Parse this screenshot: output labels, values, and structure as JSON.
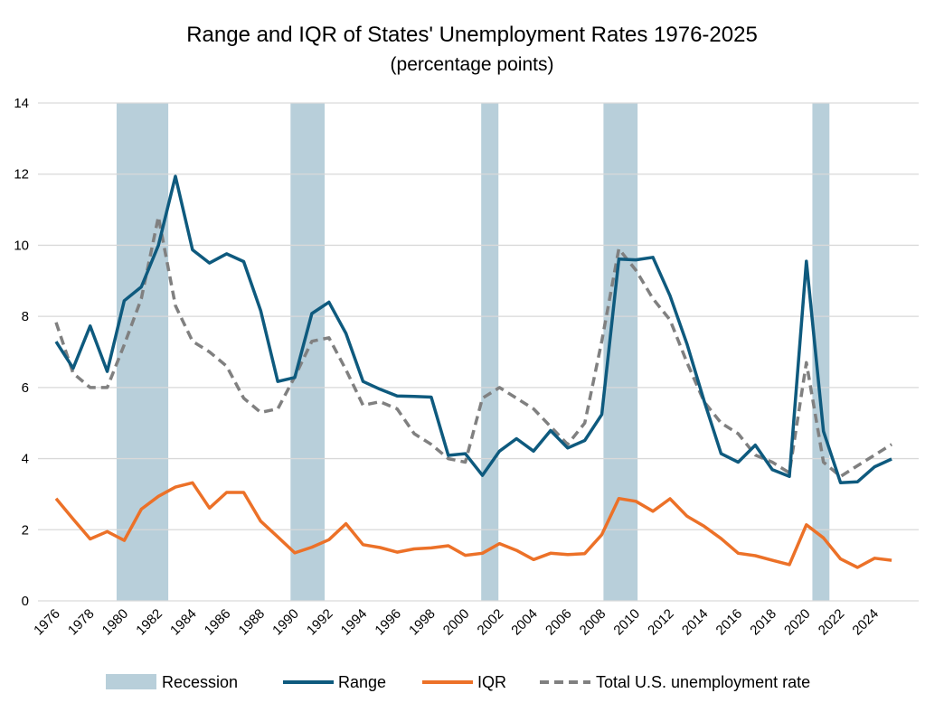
{
  "chart_data": {
    "type": "line",
    "title": "Range and IQR of States' Unemployment Rates 1976-2025",
    "subtitle": "(percentage points)",
    "xlabel": "",
    "ylabel": "",
    "xlim": [
      1976,
      2025
    ],
    "ylim": [
      0,
      14
    ],
    "yticks": [
      0,
      2,
      4,
      6,
      8,
      10,
      12,
      14
    ],
    "xticks": [
      1976,
      1978,
      1980,
      1982,
      1984,
      1986,
      1988,
      1990,
      1992,
      1994,
      1996,
      1998,
      2000,
      2002,
      2004,
      2006,
      2008,
      2010,
      2012,
      2014,
      2016,
      2018,
      2020,
      2022,
      2024
    ],
    "grid": "horizontal",
    "legend_placement": "bottom",
    "x": [
      1976,
      1977,
      1978,
      1979,
      1980,
      1981,
      1982,
      1983,
      1984,
      1985,
      1986,
      1987,
      1988,
      1989,
      1990,
      1991,
      1992,
      1993,
      1994,
      1995,
      1996,
      1997,
      1998,
      1999,
      2000,
      2001,
      2002,
      2003,
      2004,
      2005,
      2006,
      2007,
      2008,
      2009,
      2010,
      2011,
      2012,
      2013,
      2014,
      2015,
      2016,
      2017,
      2018,
      2019,
      2020,
      2021,
      2022,
      2023,
      2024,
      2025
    ],
    "recessions": {
      "name": "Recession",
      "color": "#b8cfda",
      "periods": [
        [
          1979.55,
          1982.58
        ],
        [
          1989.75,
          1991.75
        ],
        [
          2000.93,
          2001.94
        ],
        [
          2008.1,
          2010.1
        ],
        [
          2020.35,
          2021.35
        ]
      ]
    },
    "series": [
      {
        "name": "Range",
        "color": "#0e5a7e",
        "style": "solid",
        "values": [
          7.29,
          6.54,
          7.73,
          6.45,
          8.44,
          8.83,
          10.0,
          11.94,
          9.87,
          9.5,
          9.76,
          9.54,
          8.16,
          6.17,
          6.28,
          8.08,
          8.4,
          7.52,
          6.17,
          5.95,
          5.76,
          5.75,
          5.73,
          4.09,
          4.14,
          3.53,
          4.21,
          4.56,
          4.21,
          4.79,
          4.3,
          4.51,
          5.24,
          9.61,
          9.59,
          9.66,
          8.58,
          7.22,
          5.62,
          4.14,
          3.9,
          4.38,
          3.69,
          3.5,
          9.55,
          4.77,
          3.32,
          3.35,
          3.77,
          3.99
        ]
      },
      {
        "name": "IQR",
        "color": "#ec7128",
        "style": "solid",
        "values": [
          2.88,
          2.3,
          1.74,
          1.95,
          1.7,
          2.58,
          2.94,
          3.2,
          3.32,
          2.61,
          3.05,
          3.05,
          2.24,
          1.8,
          1.35,
          1.51,
          1.72,
          2.17,
          1.58,
          1.5,
          1.37,
          1.46,
          1.49,
          1.55,
          1.28,
          1.34,
          1.61,
          1.42,
          1.16,
          1.34,
          1.3,
          1.33,
          1.86,
          2.88,
          2.8,
          2.52,
          2.87,
          2.38,
          2.1,
          1.75,
          1.34,
          1.27,
          1.14,
          1.02,
          2.14,
          1.77,
          1.18,
          0.94,
          1.2,
          1.14
        ]
      },
      {
        "name": "Total U.S. unemployment rate",
        "color": "#808080",
        "style": "dashed",
        "values": [
          7.83,
          6.4,
          6.0,
          6.0,
          7.2,
          8.5,
          10.8,
          8.3,
          7.3,
          7.0,
          6.6,
          5.7,
          5.3,
          5.4,
          6.3,
          7.3,
          7.4,
          6.5,
          5.5,
          5.6,
          5.4,
          4.7,
          4.4,
          4.0,
          3.9,
          5.7,
          6.0,
          5.7,
          5.4,
          4.9,
          4.4,
          5.0,
          7.3,
          9.9,
          9.3,
          8.5,
          7.9,
          6.7,
          5.6,
          5.0,
          4.7,
          4.1,
          3.9,
          3.6,
          6.7,
          3.9,
          3.5,
          3.8,
          4.1,
          4.4
        ]
      }
    ]
  }
}
